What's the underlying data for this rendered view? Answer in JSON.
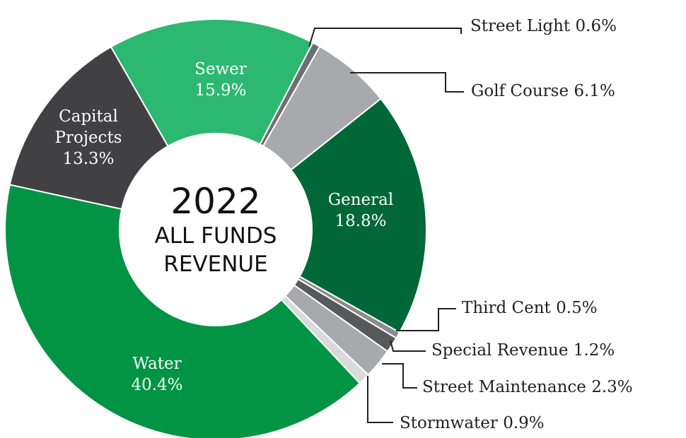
{
  "chart_data": {
    "type": "pie",
    "center_text": [
      "2022",
      "ALL FUNDS",
      "REVENUE"
    ],
    "categories": [
      "Sewer",
      "Street Light",
      "Golf Course",
      "General",
      "Third Cent",
      "Special Revenue",
      "Street Maintenance",
      "Stormwater",
      "Water",
      "Capital Projects"
    ],
    "values": [
      15.9,
      0.6,
      6.1,
      18.8,
      0.5,
      1.2,
      2.3,
      0.9,
      40.4,
      13.3
    ],
    "value_labels": [
      "15.9%",
      "0.6%",
      "6.1%",
      "18.8%",
      "0.5%",
      "1.2%",
      "2.3%",
      "0.9%",
      "40.4%",
      "13.3%"
    ],
    "colors": [
      "#2db872",
      "#6d6e71",
      "#a7a9ac",
      "#006838",
      "#8a8c8e",
      "#58595b",
      "#a7a9ac",
      "#d9dadb",
      "#009444",
      "#414042"
    ]
  }
}
